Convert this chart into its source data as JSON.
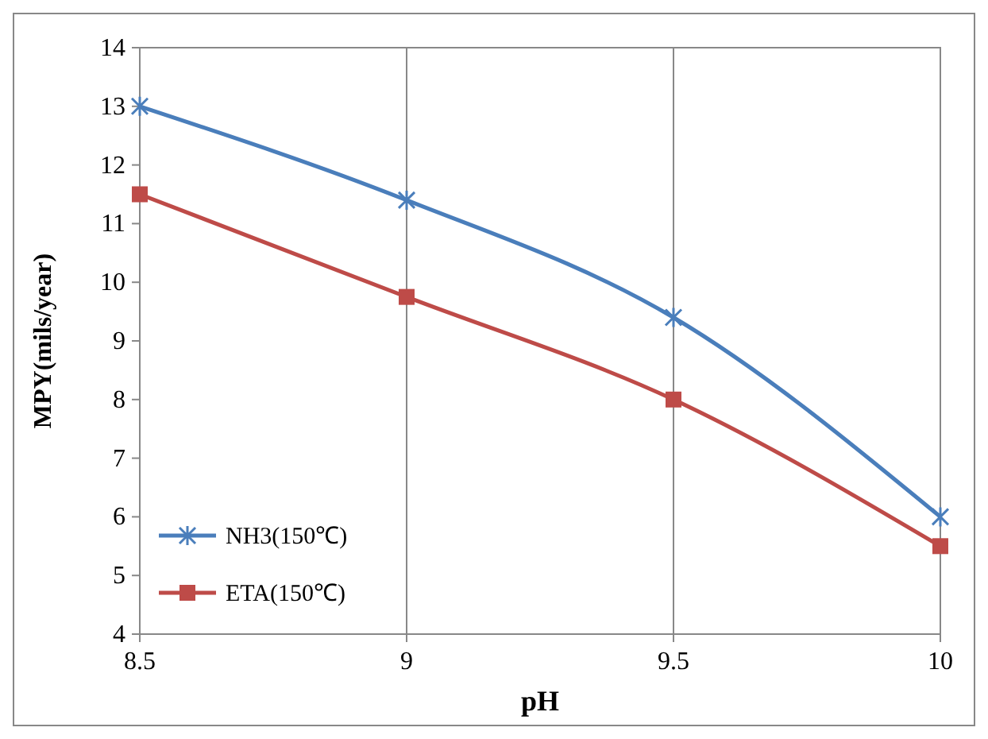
{
  "chart_data": {
    "type": "line",
    "xlabel": "pH",
    "ylabel": "MPY(mils/year)",
    "x": [
      8.5,
      9,
      9.5,
      10
    ],
    "series": [
      {
        "name": "NH3(150℃)",
        "color": "#4a7ebb",
        "marker": "cross",
        "values": [
          13,
          11.4,
          9.4,
          6
        ]
      },
      {
        "name": "ETA(150℃)",
        "color": "#be4b48",
        "marker": "square",
        "values": [
          11.5,
          9.75,
          8,
          5.5
        ]
      }
    ],
    "xlim": [
      8.5,
      10
    ],
    "xticks": [
      8.5,
      9,
      9.5,
      10
    ],
    "ylim": [
      4,
      14
    ],
    "yticks": [
      4,
      5,
      6,
      7,
      8,
      9,
      10,
      11,
      12,
      13,
      14
    ],
    "grid": "x",
    "legend": "bottom left"
  }
}
